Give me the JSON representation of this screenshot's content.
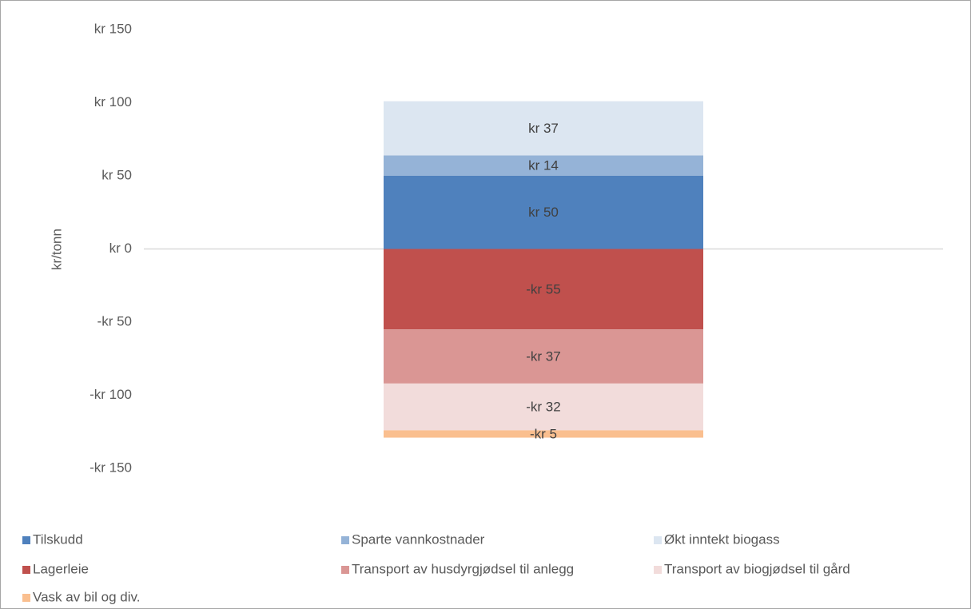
{
  "chart_data": {
    "type": "stacked_bar",
    "y_axis_label": "kr/tonn",
    "categories": [
      null
    ],
    "ylim": [
      -150,
      150
    ],
    "yticks": [
      {
        "value": 150,
        "label": "kr 150"
      },
      {
        "value": 100,
        "label": "kr 100"
      },
      {
        "value": 50,
        "label": "kr 50"
      },
      {
        "value": 0,
        "label": "kr 0"
      },
      {
        "value": -50,
        "label": "-kr 50"
      },
      {
        "value": -100,
        "label": "-kr 100"
      },
      {
        "value": -150,
        "label": "-kr 150"
      }
    ],
    "grid": false,
    "legend": "bottom",
    "series": [
      {
        "name": "Tilskudd",
        "color": "#4f81bd",
        "values": [
          50
        ],
        "value_labels": [
          "kr 50"
        ]
      },
      {
        "name": "Sparte vannkostnader",
        "color": "#95b3d7",
        "values": [
          14
        ],
        "value_labels": [
          "kr 14"
        ]
      },
      {
        "name": "Økt inntekt biogass",
        "color": "#dce6f1",
        "values": [
          37
        ],
        "value_labels": [
          "kr 37"
        ]
      },
      {
        "name": "Lagerleie",
        "color": "#c0504d",
        "values": [
          -55
        ],
        "value_labels": [
          "-kr 55"
        ]
      },
      {
        "name": "Transport av husdyrgjødsel til anlegg",
        "color": "#da9694",
        "values": [
          -37
        ],
        "value_labels": [
          "-kr 37"
        ]
      },
      {
        "name": "Transport av biogjødsel til gård",
        "color": "#f2dcdb",
        "values": [
          -32
        ],
        "value_labels": [
          "-kr 32"
        ]
      },
      {
        "name": "Vask av bil og div.",
        "color": "#fabf8f",
        "values": [
          -5
        ],
        "value_labels": [
          "-kr 5"
        ]
      }
    ]
  }
}
